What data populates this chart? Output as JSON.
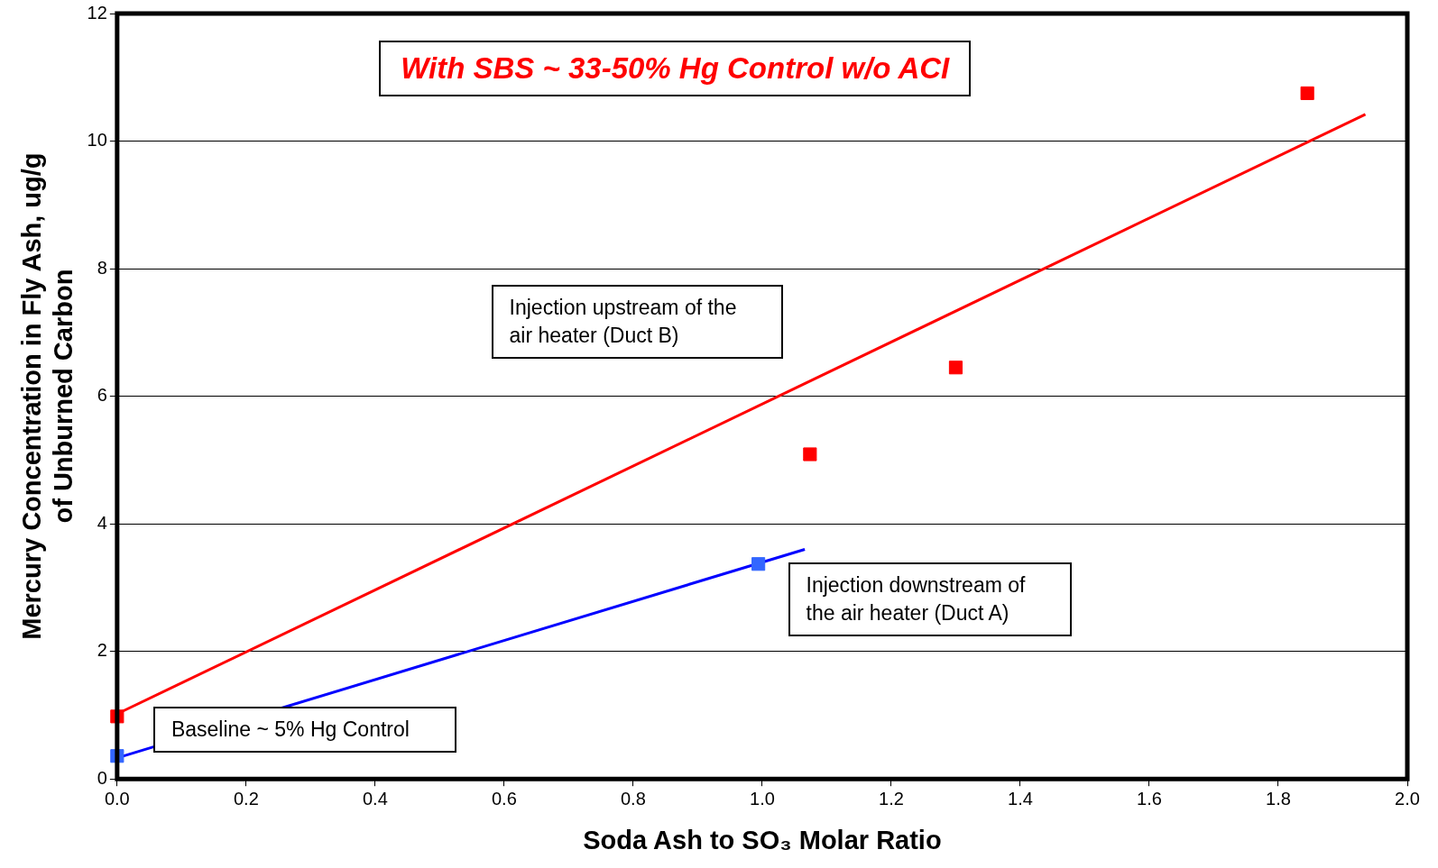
{
  "chart_data": {
    "type": "scatter",
    "title": "With SBS ~ 33-50% Hg Control w/o ACI",
    "xlabel": "Soda Ash to SO₃ Molar Ratio",
    "ylabel": "Mercury Concentration in Fly Ash, ug/g\nof Unburned Carbon",
    "series": [
      {
        "type": "scatter",
        "color": "#ff0000",
        "x": [
          0,
          1.074,
          1.3,
          1.845
        ],
        "values": [
          0.98,
          5.09,
          6.45,
          10.75
        ]
      },
      {
        "type": "scatter",
        "color": "#3366ff",
        "x": [
          0,
          0.994
        ],
        "values": [
          0.36,
          3.37
        ]
      },
      {
        "type": "line",
        "color": "#ff0000",
        "marker": "none",
        "x": [
          0,
          1.935
        ],
        "values": [
          1.02,
          10.42
        ]
      },
      {
        "type": "line",
        "color": "#0000ff",
        "marker": "none",
        "x": [
          0,
          1.066
        ],
        "values": [
          0.33,
          3.6
        ]
      }
    ],
    "marker": "square",
    "grid": "y",
    "legend": false,
    "xlim": [
      0,
      2
    ],
    "xticks": [
      {
        "value": 0,
        "label": "0.0"
      },
      {
        "value": 0.2,
        "label": "0.2"
      },
      {
        "value": 0.4,
        "label": "0.4"
      },
      {
        "value": 0.6,
        "label": "0.6"
      },
      {
        "value": 0.8,
        "label": "0.8"
      },
      {
        "value": 1,
        "label": "1.0"
      },
      {
        "value": 1.2,
        "label": "1.2"
      },
      {
        "value": 1.4,
        "label": "1.4"
      },
      {
        "value": 1.6,
        "label": "1.6"
      },
      {
        "value": 1.8,
        "label": "1.8"
      },
      {
        "value": 2,
        "label": "2.0"
      }
    ],
    "ylim": [
      0,
      12
    ],
    "yticks": [
      0,
      2,
      4,
      6,
      8,
      10,
      12
    ],
    "annotations": [
      "Injection upstream of the\nair heater (Duct B)",
      "Injection downstream of\nthe air heater (Duct A)",
      "Baseline ~ 5% Hg Control"
    ]
  }
}
